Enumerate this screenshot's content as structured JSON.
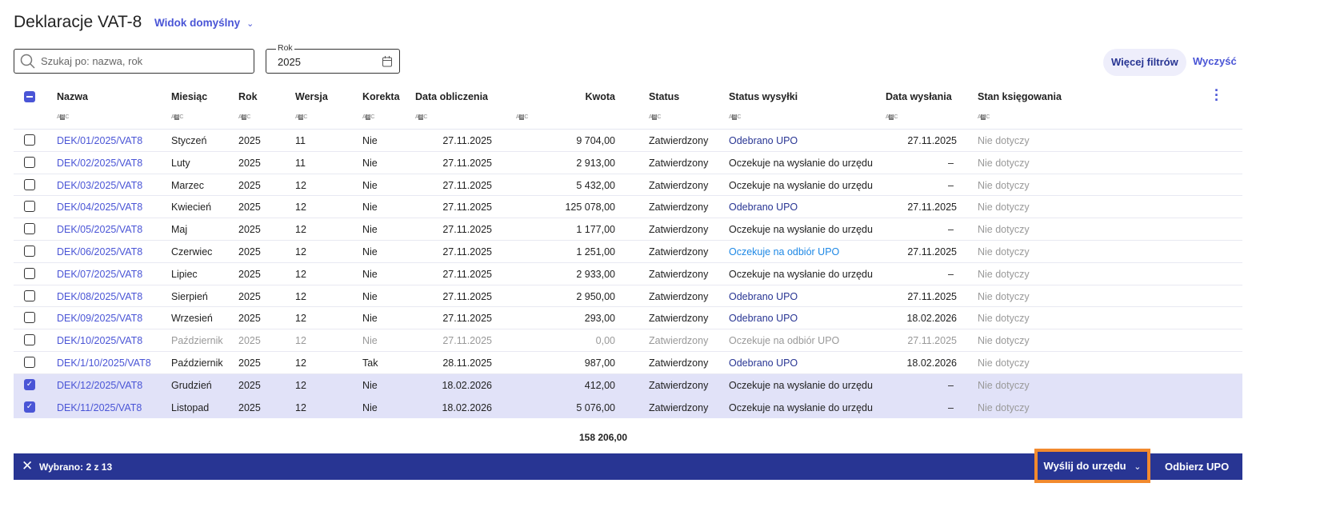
{
  "header": {
    "title": "Deklaracje VAT-8",
    "view_label": "Widok domyślny"
  },
  "search": {
    "placeholder": "Szukaj po: nazwa, rok"
  },
  "year_field": {
    "label": "Rok",
    "value": "2025"
  },
  "toolbar": {
    "more_filters": "Więcej filtrów",
    "clear": "Wyczyść"
  },
  "columns": [
    "Nazwa",
    "Miesiąc",
    "Rok",
    "Wersja",
    "Korekta",
    "Data obliczenia",
    "Kwota",
    "Status",
    "Status wysyłki",
    "Data wysłania",
    "Stan księgowania"
  ],
  "filter_icon": "ABC",
  "colors": {
    "accent": "#4a55d6",
    "bar": "#283593",
    "highlight": "#f28a2e",
    "selected_row": "#e1e2f8",
    "upo_received": "#283593",
    "upo_waiting": "#1e88e5"
  },
  "rows": [
    {
      "name": "DEK/01/2025/VAT8",
      "month": "Styczeń",
      "year": "2025",
      "version": "11",
      "correction": "Nie",
      "calc_date": "27.11.2025",
      "amount": "9 704,00",
      "status": "Zatwierdzony",
      "send_status": "Odebrano UPO",
      "send_kind": "received",
      "sent_date": "27.11.2025",
      "posting": "Nie dotyczy",
      "checked": false,
      "disabled": false
    },
    {
      "name": "DEK/02/2025/VAT8",
      "month": "Luty",
      "year": "2025",
      "version": "11",
      "correction": "Nie",
      "calc_date": "27.11.2025",
      "amount": "2 913,00",
      "status": "Zatwierdzony",
      "send_status": "Oczekuje na wysłanie do urzędu",
      "send_kind": "pending",
      "sent_date": "–",
      "posting": "Nie dotyczy",
      "checked": false,
      "disabled": false
    },
    {
      "name": "DEK/03/2025/VAT8",
      "month": "Marzec",
      "year": "2025",
      "version": "12",
      "correction": "Nie",
      "calc_date": "27.11.2025",
      "amount": "5 432,00",
      "status": "Zatwierdzony",
      "send_status": "Oczekuje na wysłanie do urzędu",
      "send_kind": "pending",
      "sent_date": "–",
      "posting": "Nie dotyczy",
      "checked": false,
      "disabled": false
    },
    {
      "name": "DEK/04/2025/VAT8",
      "month": "Kwiecień",
      "year": "2025",
      "version": "12",
      "correction": "Nie",
      "calc_date": "27.11.2025",
      "amount": "125 078,00",
      "status": "Zatwierdzony",
      "send_status": "Odebrano UPO",
      "send_kind": "received",
      "sent_date": "27.11.2025",
      "posting": "Nie dotyczy",
      "checked": false,
      "disabled": false
    },
    {
      "name": "DEK/05/2025/VAT8",
      "month": "Maj",
      "year": "2025",
      "version": "12",
      "correction": "Nie",
      "calc_date": "27.11.2025",
      "amount": "1 177,00",
      "status": "Zatwierdzony",
      "send_status": "Oczekuje na wysłanie do urzędu",
      "send_kind": "pending",
      "sent_date": "–",
      "posting": "Nie dotyczy",
      "checked": false,
      "disabled": false
    },
    {
      "name": "DEK/06/2025/VAT8",
      "month": "Czerwiec",
      "year": "2025",
      "version": "12",
      "correction": "Nie",
      "calc_date": "27.11.2025",
      "amount": "1 251,00",
      "status": "Zatwierdzony",
      "send_status": "Oczekuje na odbiór UPO",
      "send_kind": "waiting",
      "sent_date": "27.11.2025",
      "posting": "Nie dotyczy",
      "checked": false,
      "disabled": false
    },
    {
      "name": "DEK/07/2025/VAT8",
      "month": "Lipiec",
      "year": "2025",
      "version": "12",
      "correction": "Nie",
      "calc_date": "27.11.2025",
      "amount": "2 933,00",
      "status": "Zatwierdzony",
      "send_status": "Oczekuje na wysłanie do urzędu",
      "send_kind": "pending",
      "sent_date": "–",
      "posting": "Nie dotyczy",
      "checked": false,
      "disabled": false
    },
    {
      "name": "DEK/08/2025/VAT8",
      "month": "Sierpień",
      "year": "2025",
      "version": "12",
      "correction": "Nie",
      "calc_date": "27.11.2025",
      "amount": "2 950,00",
      "status": "Zatwierdzony",
      "send_status": "Odebrano UPO",
      "send_kind": "received",
      "sent_date": "27.11.2025",
      "posting": "Nie dotyczy",
      "checked": false,
      "disabled": false
    },
    {
      "name": "DEK/09/2025/VAT8",
      "month": "Wrzesień",
      "year": "2025",
      "version": "12",
      "correction": "Nie",
      "calc_date": "27.11.2025",
      "amount": "293,00",
      "status": "Zatwierdzony",
      "send_status": "Odebrano UPO",
      "send_kind": "received",
      "sent_date": "18.02.2026",
      "posting": "Nie dotyczy",
      "checked": false,
      "disabled": false
    },
    {
      "name": "DEK/10/2025/VAT8",
      "month": "Październik",
      "year": "2025",
      "version": "12",
      "correction": "Nie",
      "calc_date": "27.11.2025",
      "amount": "0,00",
      "status": "Zatwierdzony",
      "send_status": "Oczekuje na odbiór UPO",
      "send_kind": "waiting",
      "sent_date": "27.11.2025",
      "posting": "Nie dotyczy",
      "checked": false,
      "disabled": true
    },
    {
      "name": "DEK/1/10/2025/VAT8",
      "month": "Październik",
      "year": "2025",
      "version": "12",
      "correction": "Tak",
      "calc_date": "28.11.2025",
      "amount": "987,00",
      "status": "Zatwierdzony",
      "send_status": "Odebrano UPO",
      "send_kind": "received",
      "sent_date": "18.02.2026",
      "posting": "Nie dotyczy",
      "checked": false,
      "disabled": false
    },
    {
      "name": "DEK/12/2025/VAT8",
      "month": "Grudzień",
      "year": "2025",
      "version": "12",
      "correction": "Nie",
      "calc_date": "18.02.2026",
      "amount": "412,00",
      "status": "Zatwierdzony",
      "send_status": "Oczekuje na wysłanie do urzędu",
      "send_kind": "pending",
      "sent_date": "–",
      "posting": "Nie dotyczy",
      "checked": true,
      "disabled": false
    },
    {
      "name": "DEK/11/2025/VAT8",
      "month": "Listopad",
      "year": "2025",
      "version": "12",
      "correction": "Nie",
      "calc_date": "18.02.2026",
      "amount": "5 076,00",
      "status": "Zatwierdzony",
      "send_status": "Oczekuje na wysłanie do urzędu",
      "send_kind": "pending",
      "sent_date": "–",
      "posting": "Nie dotyczy",
      "checked": true,
      "disabled": false
    }
  ],
  "total": "158 206,00",
  "action_bar": {
    "selected": "Wybrano: 2 z 13",
    "send": "Wyślij do urzędu",
    "receive": "Odbierz UPO"
  }
}
